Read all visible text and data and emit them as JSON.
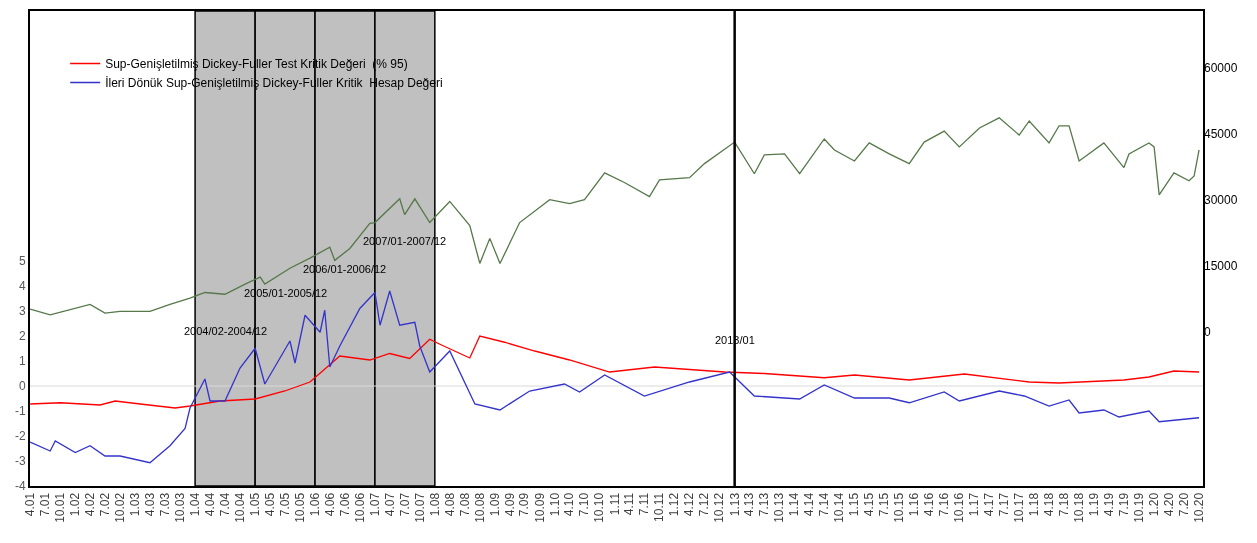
{
  "chart_data": {
    "type": "line",
    "xlim": [
      "2001-03-31",
      "2020-10-25"
    ],
    "xticks": [
      {
        "value": "2001-04-01",
        "label": "4.01"
      },
      {
        "value": "2001-07-01",
        "label": "7.01"
      },
      {
        "value": "2001-10-01",
        "label": "10.01"
      },
      {
        "value": "2002-01-01",
        "label": "1.02"
      },
      {
        "value": "2002-04-01",
        "label": "4.02"
      },
      {
        "value": "2002-07-01",
        "label": "7.02"
      },
      {
        "value": "2002-10-01",
        "label": "10.02"
      },
      {
        "value": "2003-01-01",
        "label": "1.03"
      },
      {
        "value": "2003-04-01",
        "label": "4.03"
      },
      {
        "value": "2003-07-01",
        "label": "7.03"
      },
      {
        "value": "2003-10-01",
        "label": "10.03"
      },
      {
        "value": "2004-01-01",
        "label": "1.04"
      },
      {
        "value": "2004-04-01",
        "label": "4.04"
      },
      {
        "value": "2004-07-01",
        "label": "7.04"
      },
      {
        "value": "2004-10-01",
        "label": "10.04"
      },
      {
        "value": "2005-01-01",
        "label": "1.05"
      },
      {
        "value": "2005-04-01",
        "label": "4.05"
      },
      {
        "value": "2005-07-01",
        "label": "7.05"
      },
      {
        "value": "2005-10-01",
        "label": "10.05"
      },
      {
        "value": "2006-01-01",
        "label": "1.06"
      },
      {
        "value": "2006-04-01",
        "label": "4.06"
      },
      {
        "value": "2006-07-01",
        "label": "7.06"
      },
      {
        "value": "2006-10-01",
        "label": "10.06"
      },
      {
        "value": "2007-01-01",
        "label": "1.07"
      },
      {
        "value": "2007-04-01",
        "label": "4.07"
      },
      {
        "value": "2007-07-01",
        "label": "7.07"
      },
      {
        "value": "2007-10-01",
        "label": "10.07"
      },
      {
        "value": "2008-01-01",
        "label": "1.08"
      },
      {
        "value": "2008-04-01",
        "label": "4.08"
      },
      {
        "value": "2008-07-01",
        "label": "7.08"
      },
      {
        "value": "2008-10-01",
        "label": "10.08"
      },
      {
        "value": "2009-01-01",
        "label": "1.09"
      },
      {
        "value": "2009-04-01",
        "label": "4.09"
      },
      {
        "value": "2009-07-01",
        "label": "7.09"
      },
      {
        "value": "2009-10-01",
        "label": "10.09"
      },
      {
        "value": "2010-01-01",
        "label": "1.10"
      },
      {
        "value": "2010-04-01",
        "label": "4.10"
      },
      {
        "value": "2010-07-01",
        "label": "7.10"
      },
      {
        "value": "2010-10-01",
        "label": "10.10"
      },
      {
        "value": "2011-01-01",
        "label": "1.11"
      },
      {
        "value": "2011-04-01",
        "label": "4.11"
      },
      {
        "value": "2011-07-01",
        "label": "7.11"
      },
      {
        "value": "2011-10-01",
        "label": "10.11"
      },
      {
        "value": "2012-01-01",
        "label": "1.12"
      },
      {
        "value": "2012-04-01",
        "label": "4.12"
      },
      {
        "value": "2012-07-01",
        "label": "7.12"
      },
      {
        "value": "2012-10-01",
        "label": "10.12"
      },
      {
        "value": "2013-01-01",
        "label": "1.13"
      },
      {
        "value": "2013-04-01",
        "label": "4.13"
      },
      {
        "value": "2013-07-01",
        "label": "7.13"
      },
      {
        "value": "2013-10-01",
        "label": "10.13"
      },
      {
        "value": "2014-01-01",
        "label": "1.14"
      },
      {
        "value": "2014-04-01",
        "label": "4.14"
      },
      {
        "value": "2014-07-01",
        "label": "7.14"
      },
      {
        "value": "2014-10-01",
        "label": "10.14"
      },
      {
        "value": "2015-01-01",
        "label": "1.15"
      },
      {
        "value": "2015-04-01",
        "label": "4.15"
      },
      {
        "value": "2015-07-01",
        "label": "7.15"
      },
      {
        "value": "2015-10-01",
        "label": "10.15"
      },
      {
        "value": "2016-01-01",
        "label": "1.16"
      },
      {
        "value": "2016-04-01",
        "label": "4.16"
      },
      {
        "value": "2016-07-01",
        "label": "7.16"
      },
      {
        "value": "2016-10-01",
        "label": "10.16"
      },
      {
        "value": "2017-01-01",
        "label": "1.17"
      },
      {
        "value": "2017-04-01",
        "label": "4.17"
      },
      {
        "value": "2017-07-01",
        "label": "7.17"
      },
      {
        "value": "2017-10-01",
        "label": "10.17"
      },
      {
        "value": "2018-01-01",
        "label": "1.18"
      },
      {
        "value": "2018-04-01",
        "label": "4.18"
      },
      {
        "value": "2018-07-01",
        "label": "7.18"
      },
      {
        "value": "2018-10-01",
        "label": "10.18"
      },
      {
        "value": "2019-01-01",
        "label": "1.19"
      },
      {
        "value": "2019-04-01",
        "label": "4.19"
      },
      {
        "value": "2019-07-01",
        "label": "7.19"
      },
      {
        "value": "2019-10-01",
        "label": "10.19"
      },
      {
        "value": "2020-01-01",
        "label": "1.20"
      },
      {
        "value": "2020-04-01",
        "label": "4.20"
      },
      {
        "value": "2020-07-01",
        "label": "7.20"
      },
      {
        "value": "2020-10-01",
        "label": "10.20"
      }
    ],
    "ylim": [
      -4,
      15
    ],
    "yticks": [
      -4,
      -3,
      -2,
      -1,
      0,
      1,
      2,
      3,
      4,
      5
    ],
    "y2lim": [
      -35000,
      73000
    ],
    "y2ticks": [
      0,
      15000,
      30000,
      45000,
      60000
    ],
    "series": [
      {
        "color": "#56784a",
        "axis": "y2",
        "x": [
          "2001-04",
          "2001-08",
          "2002-04",
          "2002-07",
          "2002-10",
          "2003-02",
          "2003-04",
          "2003-08",
          "2003-12",
          "2004-03",
          "2004-07",
          "2004-11",
          "2005-02",
          "2005-03",
          "2005-08",
          "2005-12",
          "2006-04",
          "2006-05",
          "2006-08",
          "2006-12",
          "2007-01",
          "2007-06",
          "2007-07",
          "2007-09",
          "2007-12",
          "2008-04",
          "2008-08",
          "2008-10",
          "2008-12",
          "2009-02",
          "2009-06",
          "2009-12",
          "2010-04",
          "2010-07",
          "2010-11",
          "2011-03",
          "2011-08",
          "2011-10",
          "2012-04",
          "2012-07",
          "2013-01",
          "2013-05",
          "2013-07",
          "2013-11",
          "2014-02",
          "2014-07",
          "2014-09",
          "2015-01",
          "2015-04",
          "2015-08",
          "2015-12",
          "2016-03",
          "2016-07",
          "2016-10",
          "2017-02",
          "2017-06",
          "2017-10",
          "2017-12",
          "2018-04",
          "2018-06",
          "2018-08",
          "2018-10",
          "2019-03",
          "2019-07",
          "2019-08",
          "2019-12",
          "2020-01",
          "2020-02",
          "2020-05",
          "2020-08",
          "2020-09",
          "2020-10"
        ],
        "values": [
          5200,
          3900,
          6300,
          4300,
          4700,
          4700,
          4700,
          6300,
          7700,
          9000,
          8600,
          10900,
          12500,
          10900,
          14500,
          16800,
          19300,
          16300,
          19000,
          24700,
          24900,
          30300,
          26700,
          30300,
          24900,
          29700,
          24200,
          15600,
          21300,
          15600,
          24900,
          30100,
          29200,
          30100,
          36200,
          34000,
          30800,
          34600,
          35100,
          38300,
          43200,
          36000,
          40300,
          40500,
          36000,
          43900,
          41400,
          38900,
          43000,
          40500,
          38300,
          43200,
          45700,
          42100,
          46400,
          48700,
          44800,
          48000,
          43000,
          46900,
          46900,
          38900,
          43000,
          37400,
          40500,
          43000,
          42100,
          31200,
          36200,
          34400,
          35500,
          41400
        ]
      },
      {
        "name": "Sup-Genişletilmiş Dickey-Fuller Test Kritik Değeri  (% 95)",
        "color": "#ff0000",
        "x": [
          "2001-04",
          "2001-10",
          "2002-06",
          "2002-09",
          "2003-02",
          "2003-09",
          "2003-12",
          "2004-06",
          "2005-01",
          "2005-07",
          "2005-12",
          "2006-06",
          "2006-12",
          "2007-04",
          "2007-08",
          "2007-12",
          "2008-02",
          "2008-08",
          "2008-10",
          "2009-03",
          "2009-09",
          "2010-04",
          "2010-12",
          "2011-09",
          "2012-11",
          "2013-07",
          "2014-07",
          "2015-01",
          "2015-12",
          "2016-11",
          "2017-12",
          "2018-06",
          "2019-07",
          "2019-12",
          "2020-05",
          "2020-10"
        ],
        "values": [
          -0.72,
          -0.67,
          -0.76,
          -0.6,
          -0.72,
          -0.88,
          -0.8,
          -0.6,
          -0.52,
          -0.2,
          0.16,
          1.2,
          1.04,
          1.3,
          1.1,
          1.87,
          1.67,
          1.12,
          2.0,
          1.75,
          1.4,
          1.04,
          0.56,
          0.76,
          0.56,
          0.5,
          0.33,
          0.44,
          0.24,
          0.48,
          0.16,
          0.12,
          0.24,
          0.36,
          0.6,
          0.56
        ]
      },
      {
        "name": "İleri Dönük Sup-Genişletilmiş Dickey-Fuller Kritik  Hesap Değeri",
        "color": "#3333cc",
        "x": [
          "2001-04",
          "2001-08",
          "2001-09",
          "2002-01",
          "2002-04",
          "2002-07",
          "2002-10",
          "2003-04",
          "2003-08",
          "2003-11",
          "2003-12",
          "2004-03",
          "2004-04",
          "2004-07",
          "2004-10",
          "2005-01",
          "2005-03",
          "2005-08",
          "2005-09",
          "2005-11",
          "2006-02",
          "2006-03",
          "2006-04",
          "2006-06",
          "2006-10",
          "2007-01",
          "2007-02",
          "2007-04",
          "2007-06",
          "2007-09",
          "2007-10",
          "2007-12",
          "2008-04",
          "2008-09",
          "2009-02",
          "2009-08",
          "2010-03",
          "2010-06",
          "2010-11",
          "2011-07",
          "2012-04",
          "2012-12",
          "2013-05",
          "2014-02",
          "2014-07",
          "2015-01",
          "2015-08",
          "2015-12",
          "2016-07",
          "2016-10",
          "2017-06",
          "2017-11",
          "2018-04",
          "2018-08",
          "2018-10",
          "2019-03",
          "2019-06",
          "2019-12",
          "2020-02",
          "2020-10"
        ],
        "values": [
          -2.24,
          -2.6,
          -2.2,
          -2.66,
          -2.39,
          -2.8,
          -2.8,
          -3.07,
          -2.39,
          -1.7,
          -0.88,
          0.28,
          -0.6,
          -0.6,
          0.72,
          1.51,
          0.08,
          1.8,
          0.92,
          2.83,
          2.15,
          3.03,
          0.76,
          1.6,
          3.1,
          3.74,
          2.43,
          3.8,
          2.43,
          2.55,
          1.6,
          0.56,
          1.4,
          -0.72,
          -0.96,
          -0.2,
          0.08,
          -0.24,
          0.44,
          -0.4,
          0.16,
          0.56,
          -0.4,
          -0.52,
          0.04,
          -0.48,
          -0.48,
          -0.67,
          -0.24,
          -0.6,
          -0.2,
          -0.4,
          -0.8,
          -0.56,
          -1.08,
          -0.96,
          -1.24,
          -1.0,
          -1.43,
          -1.27
        ]
      }
    ],
    "bands": [
      {
        "axis": "x",
        "from": "2004-01-01",
        "to": "2005-01-01",
        "label": "2004/02-2004/12",
        "color": "#c0c0c0"
      },
      {
        "axis": "x",
        "from": "2005-01-01",
        "to": "2006-01-01",
        "label": "2005/01-2005/12",
        "color": "#c0c0c0"
      },
      {
        "axis": "x",
        "from": "2006-01-01",
        "to": "2007-01-01",
        "label": "2006/01-2006/12",
        "color": "#c0c0c0"
      },
      {
        "axis": "x",
        "from": "2007-01-01",
        "to": "2008-01-01",
        "label": "2007/01-2007/12",
        "color": "#c0c0c0"
      }
    ],
    "ref_lines": [
      {
        "axis": "x",
        "value": "2013-01-01",
        "label": "2013/01",
        "color": "#000000"
      },
      {
        "axis": "y",
        "value": 0,
        "color": "#d9d9d9"
      }
    ],
    "legend": "top left",
    "grid": false,
    "marker": "none",
    "line_style": "solid"
  }
}
